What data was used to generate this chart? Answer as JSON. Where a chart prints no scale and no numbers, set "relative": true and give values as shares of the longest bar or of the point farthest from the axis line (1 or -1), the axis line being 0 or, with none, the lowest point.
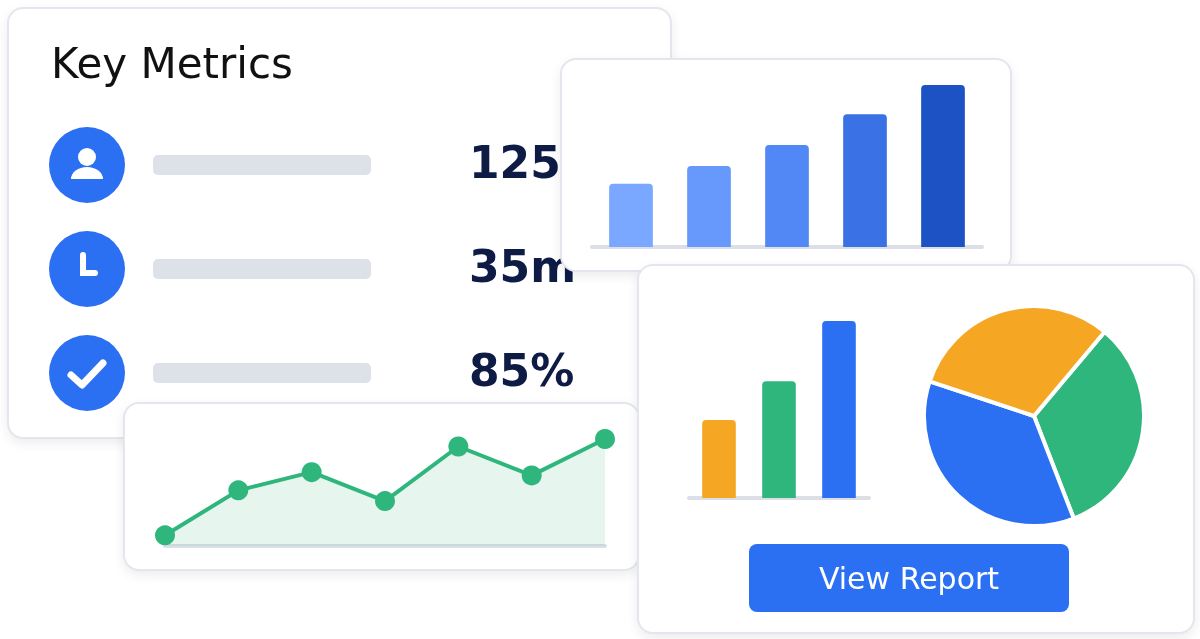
{
  "chart_data": [
    {
      "type": "other",
      "title": "Key Metrics",
      "annotations": [
        "125",
        "35m",
        "85%"
      ]
    },
    {
      "type": "bar",
      "relative": true,
      "categories": [
        null,
        null,
        null,
        null,
        null
      ],
      "values": [
        0.39,
        0.5,
        0.63,
        0.82,
        1
      ],
      "colors": [
        "#7aa7ff",
        "#6699fb",
        "#5288f5",
        "#3a72e6",
        "#1c52c4"
      ]
    },
    {
      "type": "area",
      "relative": true,
      "categories": [
        null,
        null,
        null,
        null,
        null,
        null,
        null
      ],
      "values": [
        0.1,
        0.52,
        0.69,
        0.42,
        0.93,
        0.66,
        1
      ],
      "color": "#2fb67c",
      "marker": "circle"
    },
    {
      "type": "bar",
      "relative": true,
      "categories": [
        null,
        null,
        null
      ],
      "values": [
        0.44,
        0.66,
        1
      ],
      "colors": [
        "#f5a623",
        "#2fb67c",
        "#2b6ff2"
      ],
      "annotations": [
        "View Report"
      ]
    },
    {
      "type": "pie",
      "categories": [
        null,
        null,
        null
      ],
      "values": [
        33,
        36,
        31
      ],
      "colors": [
        "#2fb67c",
        "#2b6ff2",
        "#f5a623"
      ]
    }
  ]
}
